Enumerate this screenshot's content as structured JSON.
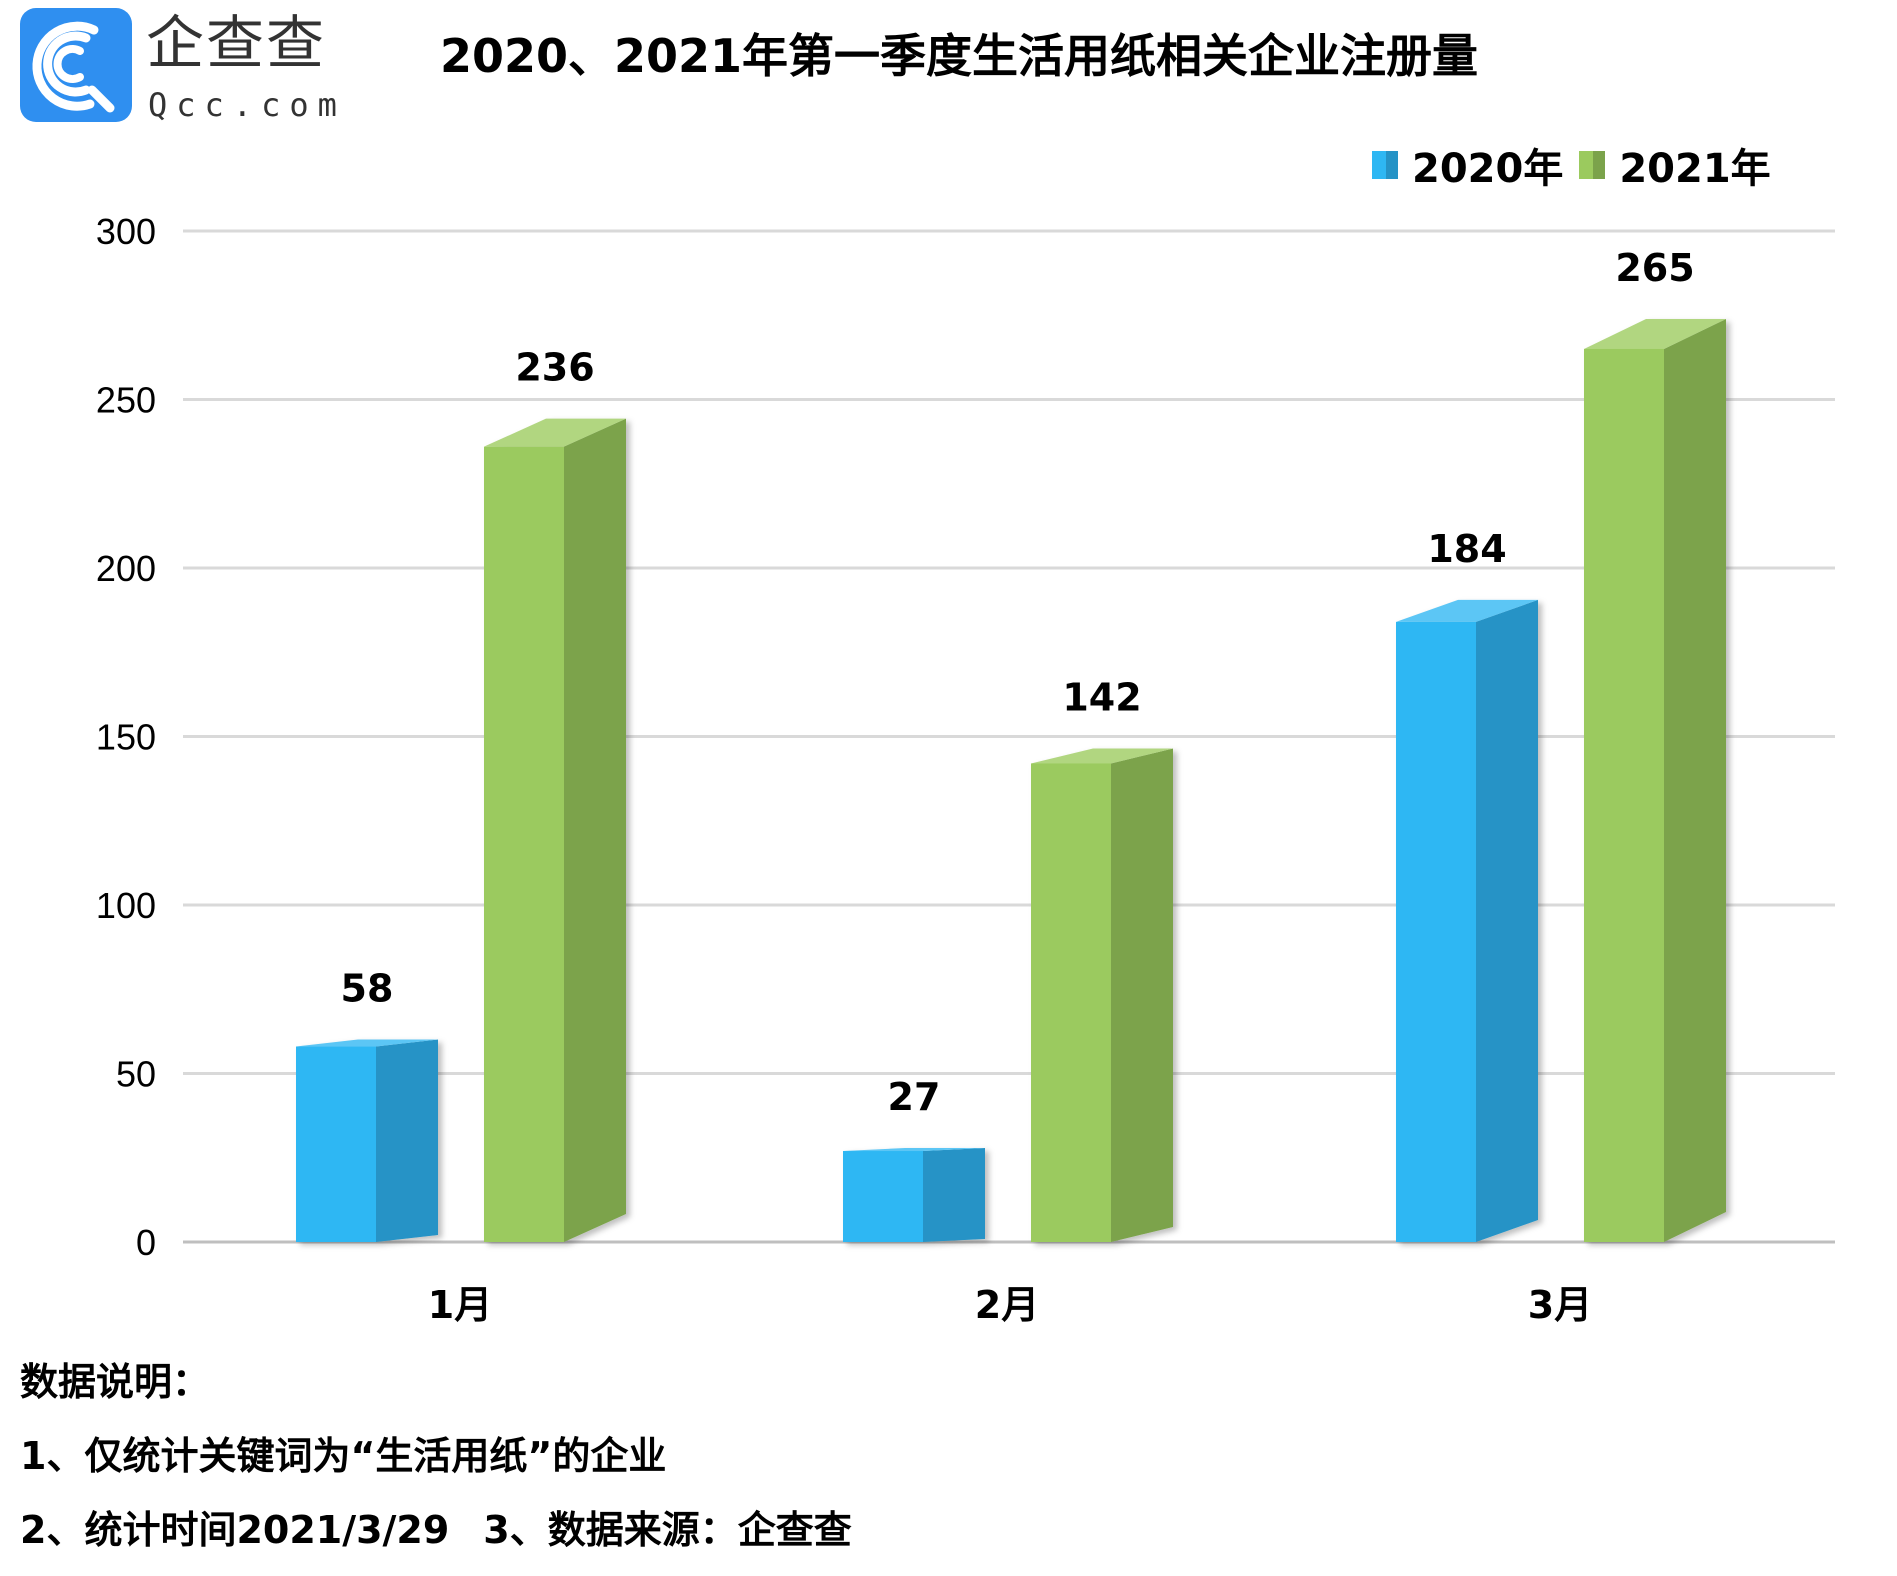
{
  "logo": {
    "name_cn": "企查查",
    "name_en": "Qcc.com",
    "icon": "qcc-logo-icon",
    "color": "#2f8ff0"
  },
  "colors": {
    "series_2020_front": "#2eb7f3",
    "series_2020_side": "#2593c6",
    "series_2020_top": "#5cc6f5",
    "series_2021_front": "#9bca5e",
    "series_2021_side": "#7ba34b",
    "series_2021_top": "#b1d680",
    "grid": "#d9d9d9",
    "axis": "#bfbfbf"
  },
  "chart_data": {
    "type": "bar",
    "title": "2020、2021年第一季度生活用纸相关企业注册量",
    "categories": [
      "1月",
      "2月",
      "3月"
    ],
    "series": [
      {
        "name": "2020年",
        "values": [
          58,
          27,
          184
        ]
      },
      {
        "name": "2021年",
        "values": [
          236,
          142,
          265
        ]
      }
    ],
    "ylim": [
      0,
      300
    ],
    "yticks": [
      "0",
      "50",
      "100",
      "150",
      "200",
      "250",
      "300"
    ],
    "ytick_values": [
      0,
      50,
      100,
      150,
      200,
      250,
      300
    ],
    "xlabel": "",
    "ylabel": "",
    "grid": true,
    "legend_position": "top-right",
    "style": "3d-column"
  },
  "notes": {
    "heading": "数据说明：",
    "line1": "1、仅统计关键词为“生活用纸”的企业",
    "line2a": "2、统计时间2021/3/29",
    "line2b": "3、数据来源：企查查"
  }
}
